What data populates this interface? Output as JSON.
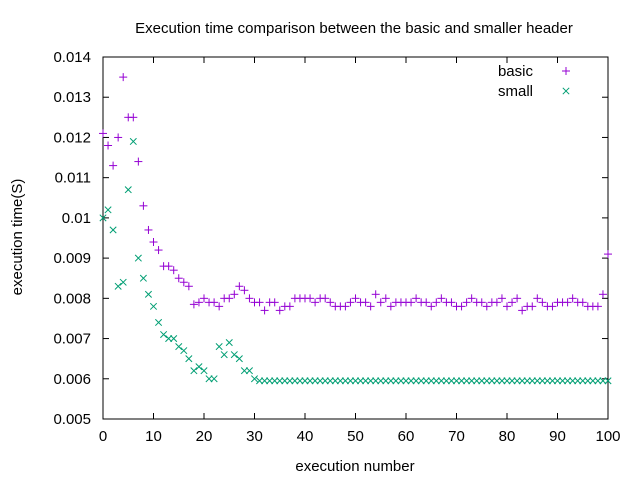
{
  "chart_data": {
    "type": "scatter",
    "title": "Execution time comparison between the basic and smaller header",
    "xlabel": "execution number",
    "ylabel": "execution time(S)",
    "xlim": [
      0,
      100
    ],
    "ylim": [
      0.005,
      0.014
    ],
    "x_ticks": [
      "0",
      "10",
      "20",
      "30",
      "40",
      "50",
      "60",
      "70",
      "80",
      "90",
      "100"
    ],
    "y_ticks": [
      "0.005",
      "0.006",
      "0.007",
      "0.008",
      "0.009",
      "0.01",
      "0.011",
      "0.012",
      "0.013",
      "0.014"
    ],
    "grid": false,
    "legend_position": "top-right",
    "series": [
      {
        "name": "basic",
        "marker": "plus",
        "color": "#9400d3",
        "x": [
          0,
          1,
          2,
          3,
          4,
          5,
          6,
          7,
          8,
          9,
          10,
          11,
          12,
          13,
          14,
          15,
          16,
          17,
          18,
          19,
          20,
          21,
          22,
          23,
          24,
          25,
          26,
          27,
          28,
          29,
          30,
          31,
          32,
          33,
          34,
          35,
          36,
          37,
          38,
          39,
          40,
          41,
          42,
          43,
          44,
          45,
          46,
          47,
          48,
          49,
          50,
          51,
          52,
          53,
          54,
          55,
          56,
          57,
          58,
          59,
          60,
          61,
          62,
          63,
          64,
          65,
          66,
          67,
          68,
          69,
          70,
          71,
          72,
          73,
          74,
          75,
          76,
          77,
          78,
          79,
          80,
          81,
          82,
          83,
          84,
          85,
          86,
          87,
          88,
          89,
          90,
          91,
          92,
          93,
          94,
          95,
          96,
          97,
          98,
          99,
          100
        ],
        "values": [
          0.0121,
          0.0118,
          0.0113,
          0.012,
          0.0135,
          0.0125,
          0.0125,
          0.0114,
          0.0103,
          0.0097,
          0.0094,
          0.0092,
          0.0088,
          0.0088,
          0.0087,
          0.0085,
          0.0084,
          0.0083,
          0.00785,
          0.0079,
          0.008,
          0.0079,
          0.0079,
          0.0078,
          0.008,
          0.008,
          0.0081,
          0.0083,
          0.0082,
          0.008,
          0.0079,
          0.0079,
          0.0077,
          0.0079,
          0.0079,
          0.0077,
          0.0078,
          0.0078,
          0.008,
          0.008,
          0.008,
          0.008,
          0.0079,
          0.008,
          0.008,
          0.0079,
          0.0078,
          0.0078,
          0.0078,
          0.0079,
          0.008,
          0.0079,
          0.0079,
          0.0078,
          0.0081,
          0.0079,
          0.008,
          0.0078,
          0.0079,
          0.0079,
          0.0079,
          0.0079,
          0.008,
          0.0079,
          0.0079,
          0.0078,
          0.0079,
          0.008,
          0.0079,
          0.0079,
          0.0078,
          0.0078,
          0.0079,
          0.008,
          0.0079,
          0.0079,
          0.0078,
          0.0079,
          0.0079,
          0.008,
          0.0078,
          0.0079,
          0.008,
          0.0077,
          0.0078,
          0.0078,
          0.008,
          0.0079,
          0.0078,
          0.0078,
          0.0079,
          0.0079,
          0.0079,
          0.008,
          0.0079,
          0.0079,
          0.0078,
          0.0078,
          0.0078,
          0.0081,
          0.0091
        ]
      },
      {
        "name": "small",
        "marker": "x",
        "color": "#009e73",
        "x": [
          0,
          1,
          2,
          3,
          4,
          5,
          6,
          7,
          8,
          9,
          10,
          11,
          12,
          13,
          14,
          15,
          16,
          17,
          18,
          19,
          20,
          21,
          22,
          23,
          24,
          25,
          26,
          27,
          28,
          29,
          30,
          31,
          32,
          33,
          34,
          35,
          36,
          37,
          38,
          39,
          40,
          41,
          42,
          43,
          44,
          45,
          46,
          47,
          48,
          49,
          50,
          51,
          52,
          53,
          54,
          55,
          56,
          57,
          58,
          59,
          60,
          61,
          62,
          63,
          64,
          65,
          66,
          67,
          68,
          69,
          70,
          71,
          72,
          73,
          74,
          75,
          76,
          77,
          78,
          79,
          80,
          81,
          82,
          83,
          84,
          85,
          86,
          87,
          88,
          89,
          90,
          91,
          92,
          93,
          94,
          95,
          96,
          97,
          98,
          99,
          100
        ],
        "values": [
          0.01,
          0.0102,
          0.0097,
          0.0083,
          0.0084,
          0.0107,
          0.0119,
          0.009,
          0.0085,
          0.0081,
          0.0078,
          0.0074,
          0.0071,
          0.007,
          0.007,
          0.0068,
          0.0067,
          0.0065,
          0.0062,
          0.0063,
          0.0062,
          0.006,
          0.006,
          0.0068,
          0.0066,
          0.0069,
          0.0066,
          0.0065,
          0.0062,
          0.0062,
          0.006,
          0.00595,
          0.00595,
          0.00595,
          0.00595,
          0.00595,
          0.00595,
          0.00595,
          0.00595,
          0.00595,
          0.00595,
          0.00595,
          0.00595,
          0.00595,
          0.00595,
          0.00595,
          0.00595,
          0.00595,
          0.00595,
          0.00595,
          0.00595,
          0.00595,
          0.00595,
          0.00595,
          0.00595,
          0.00595,
          0.00595,
          0.00595,
          0.00595,
          0.00595,
          0.00595,
          0.00595,
          0.00595,
          0.00595,
          0.00595,
          0.00595,
          0.00595,
          0.00595,
          0.00595,
          0.00595,
          0.00595,
          0.00595,
          0.00595,
          0.00595,
          0.00595,
          0.00595,
          0.00595,
          0.00595,
          0.00595,
          0.00595,
          0.00595,
          0.00595,
          0.00595,
          0.00595,
          0.00595,
          0.00595,
          0.00595,
          0.00595,
          0.00595,
          0.00595,
          0.00595,
          0.00595,
          0.00595,
          0.00595,
          0.00595,
          0.00595,
          0.00595,
          0.00595,
          0.00595,
          0.00595,
          0.00595
        ]
      }
    ]
  }
}
